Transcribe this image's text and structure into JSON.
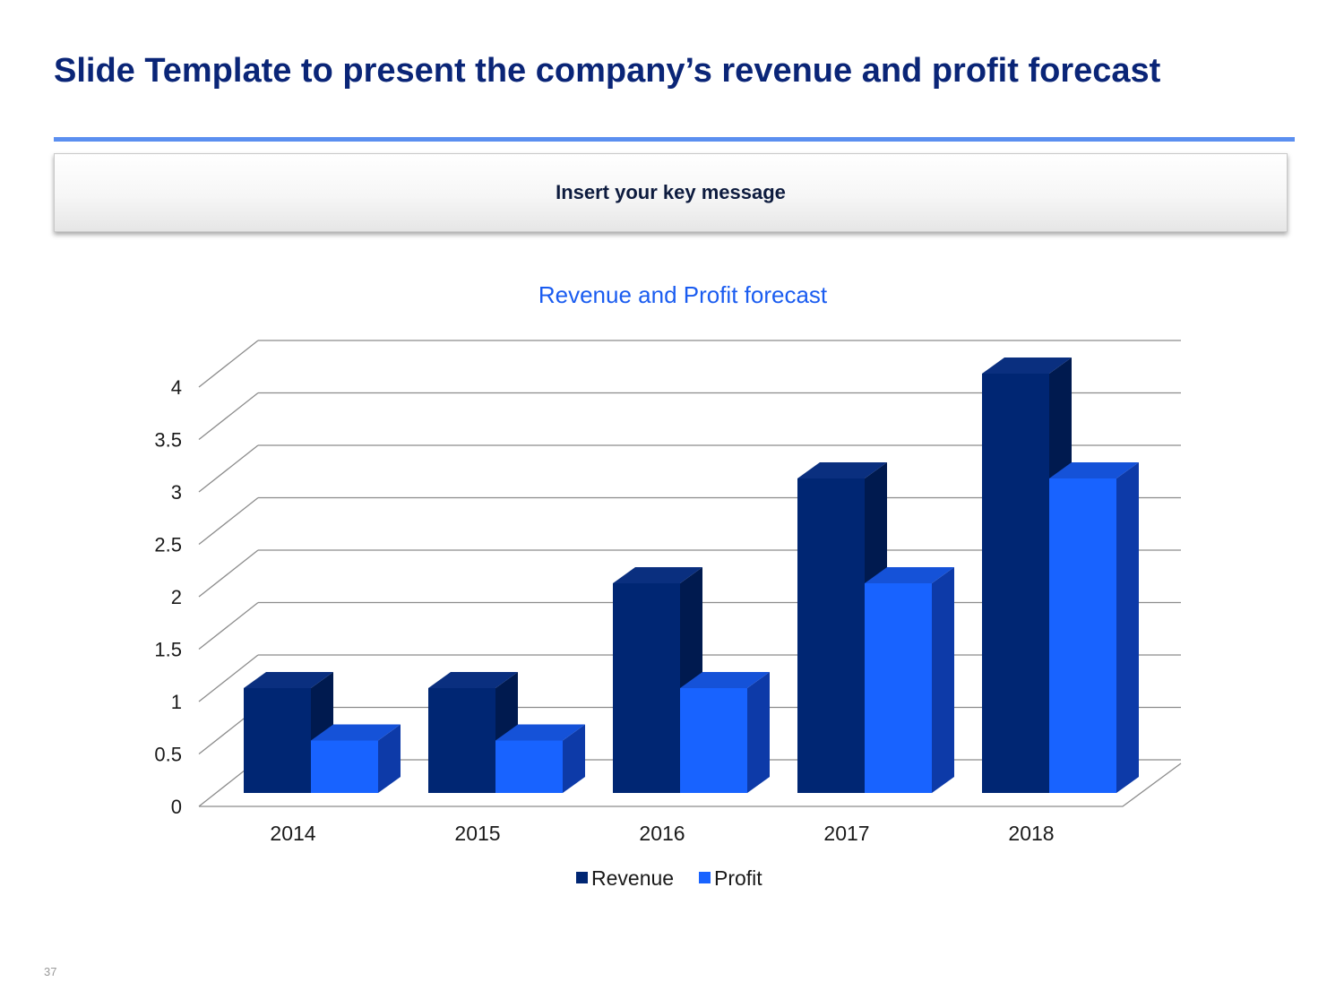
{
  "slide": {
    "title": "Slide Template to present the company’s revenue and profit forecast",
    "key_message": "Insert your key message",
    "page_number": "37"
  },
  "colors": {
    "title": "#0a2577",
    "rule": "#5b8ff0",
    "chart_title": "#1a5cf0",
    "revenue": "#002673",
    "revenue_side": "#001a4f",
    "revenue_top": "#0a2f7f",
    "profit": "#1863ff",
    "profit_side": "#0d3aa8",
    "profit_top": "#1552d8"
  },
  "chart_data": {
    "type": "bar",
    "title": "Revenue and Profit forecast",
    "categories": [
      "2014",
      "2015",
      "2016",
      "2017",
      "2018"
    ],
    "series": [
      {
        "name": "Revenue",
        "values": [
          1,
          1,
          2,
          3,
          4
        ]
      },
      {
        "name": "Profit",
        "values": [
          0.5,
          0.5,
          1,
          2,
          3
        ]
      }
    ],
    "ylim": [
      0,
      4
    ],
    "yticks": [
      "0",
      "0.5",
      "1",
      "1.5",
      "2",
      "2.5",
      "3",
      "3.5",
      "4"
    ],
    "grid": true,
    "legend": "bottom",
    "style": "3d-clustered-column"
  }
}
